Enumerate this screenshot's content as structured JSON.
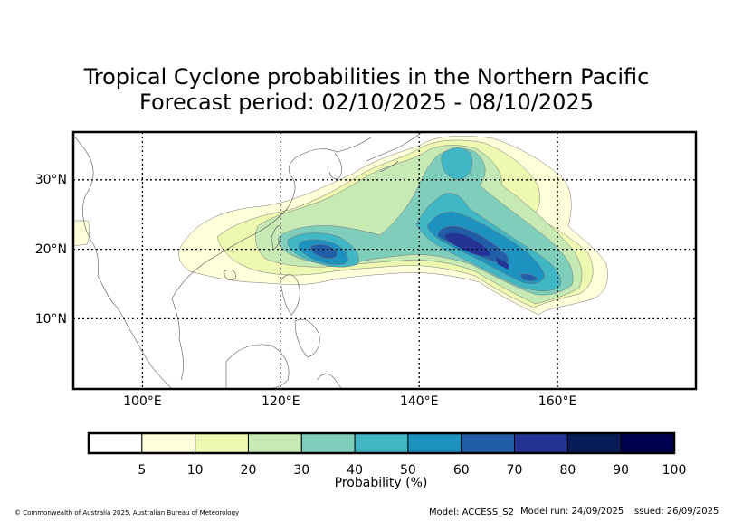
{
  "title": {
    "line1": "Tropical Cyclone probabilities in the Northern Pacific",
    "line2": "Forecast period: 02/10/2025 - 08/10/2025"
  },
  "map": {
    "lon_range": [
      90,
      180
    ],
    "lat_range": [
      0,
      37
    ],
    "lon_ticks": [
      {
        "value": 100,
        "label": "100°E"
      },
      {
        "value": 120,
        "label": "120°E"
      },
      {
        "value": 140,
        "label": "140°E"
      },
      {
        "value": 160,
        "label": "160°E"
      }
    ],
    "lat_ticks": [
      {
        "value": 10,
        "label": "10°N"
      },
      {
        "value": 20,
        "label": "20°N"
      },
      {
        "value": 30,
        "label": "30°N"
      }
    ],
    "gridlines": "dotted"
  },
  "colorbar": {
    "label": "Probability (%)",
    "levels": [
      "5",
      "10",
      "20",
      "30",
      "40",
      "50",
      "60",
      "70",
      "80",
      "90",
      "100"
    ],
    "colors": [
      "#ffffff",
      "#ffffd9",
      "#edf8b1",
      "#c7e9b4",
      "#7fcdbb",
      "#41b6c4",
      "#1d91c0",
      "#225ea8",
      "#253494",
      "#081d58",
      "#000050"
    ]
  },
  "footer": {
    "copyright": "© Commonwealth of Australia 2025, Australian Bureau of Meteorology",
    "model": "Model: ACCESS_S2",
    "model_run": "Model run: 24/09/2025",
    "issued": "Issued: 26/09/2025"
  }
}
